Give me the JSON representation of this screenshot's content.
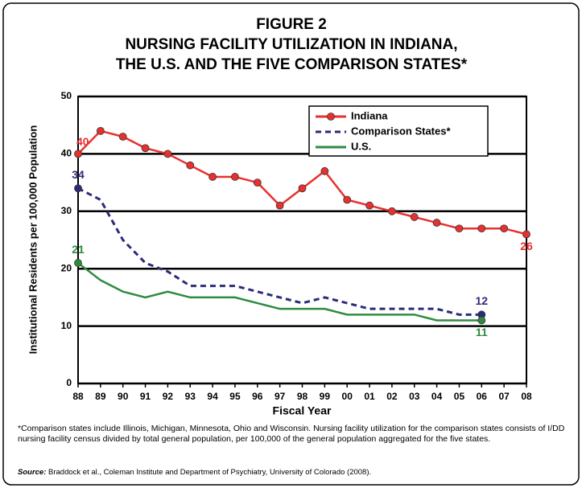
{
  "chart_data": {
    "type": "line",
    "title": [
      "FIGURE 2",
      "NURSING FACILITY UTILIZATION IN INDIANA,",
      "THE U.S. AND THE FIVE COMPARISON STATES*"
    ],
    "x_label": "Fiscal Year",
    "y_label": "Institutional Residents per 100,000 Population",
    "categories": [
      "88",
      "89",
      "90",
      "91",
      "92",
      "93",
      "94",
      "95",
      "96",
      "97",
      "98",
      "99",
      "00",
      "01",
      "02",
      "03",
      "04",
      "05",
      "06",
      "07",
      "08"
    ],
    "series": [
      {
        "name": "Indiana",
        "color": "#e8312f",
        "dash": false,
        "markers": "all",
        "values": [
          40,
          44,
          43,
          41,
          40,
          38,
          36,
          36,
          35,
          31,
          34,
          37,
          32,
          31,
          30,
          29,
          28,
          27,
          27,
          27,
          26
        ]
      },
      {
        "name": "Comparison States*",
        "color": "#2b2b7a",
        "dash": true,
        "markers": "ends",
        "values": [
          34,
          32,
          25,
          21,
          19.5,
          17,
          17,
          17,
          16,
          15,
          14,
          15,
          14,
          13,
          13,
          13,
          13,
          12,
          12,
          null,
          null
        ]
      },
      {
        "name": "U.S.",
        "color": "#2e8b3e",
        "dash": false,
        "markers": "ends",
        "values": [
          21,
          18,
          16,
          15,
          16,
          15,
          15,
          15,
          14,
          13,
          13,
          13,
          12,
          12,
          12,
          12,
          11,
          11,
          11,
          null,
          null
        ]
      }
    ],
    "ylim": [
      0,
      50
    ],
    "yticks": [
      0,
      10,
      20,
      30,
      40,
      50
    ],
    "grid": true,
    "footnote": "*Comparison states include Illinois, Michigan, Minnesota, Ohio and Wisconsin. Nursing facility utilization for the comparison states consists of I/DD nursing facility census divided by total general population, per 100,000 of the general population aggregated for the five states.",
    "source_label": "Source:",
    "source": "Braddock et al., Coleman Institute and Department of Psychiatry, University of Colorado (2008)."
  }
}
